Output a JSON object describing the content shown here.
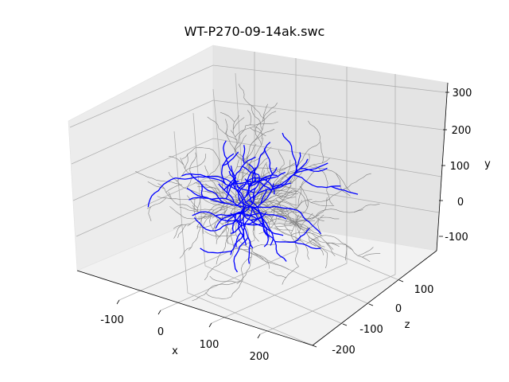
{
  "chart_data": {
    "type": "3d-line",
    "title": "WT-P270-09-14ak.swc",
    "xlabel": "x",
    "ylabel": "y",
    "zlabel": "z",
    "x_ticks": [
      -100,
      0,
      100,
      200
    ],
    "z_ticks": [
      -200,
      -100,
      0,
      100
    ],
    "y_ticks": [
      -100,
      0,
      100,
      200,
      300
    ],
    "grid": true,
    "series": [
      {
        "color": "#808080"
      },
      {
        "color": "#0000ff"
      }
    ]
  }
}
